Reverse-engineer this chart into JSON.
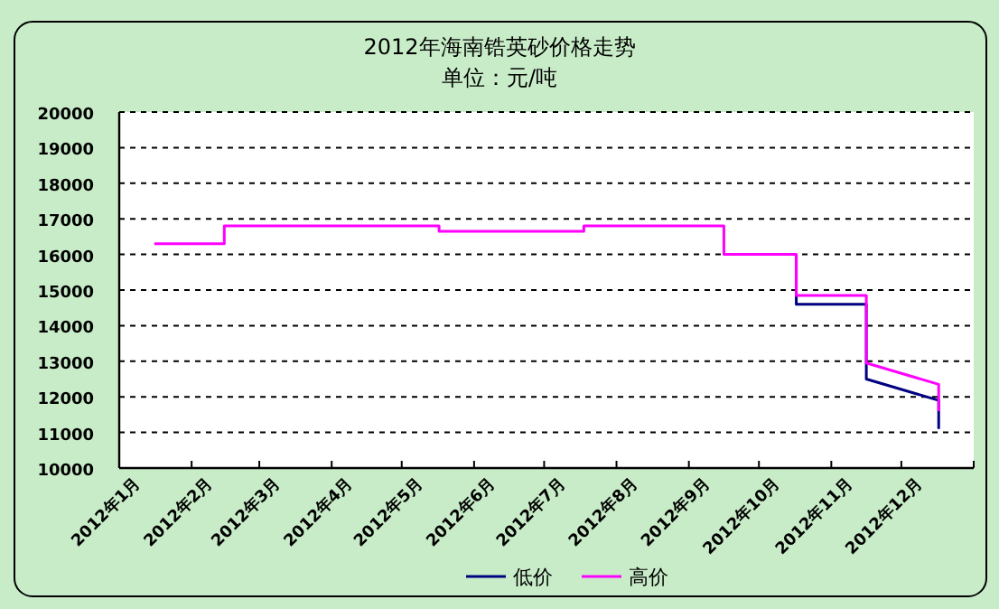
{
  "chart_data": {
    "type": "line",
    "title": "2012年海南锆英砂价格走势",
    "subtitle": "单位：元/吨",
    "xlim": [
      "2012-01-01",
      "2013-01-01"
    ],
    "xticks": [
      {
        "value": "2012-01-01",
        "label": "2012年1月"
      },
      {
        "value": "2012-02-01",
        "label": "2012年2月"
      },
      {
        "value": "2012-03-01",
        "label": "2012年3月"
      },
      {
        "value": "2012-04-01",
        "label": "2012年4月"
      },
      {
        "value": "2012-05-01",
        "label": "2012年5月"
      },
      {
        "value": "2012-06-01",
        "label": "2012年6月"
      },
      {
        "value": "2012-07-01",
        "label": "2012年7月"
      },
      {
        "value": "2012-08-01",
        "label": "2012年8月"
      },
      {
        "value": "2012-09-01",
        "label": "2012年9月"
      },
      {
        "value": "2012-10-01",
        "label": "2012年10月"
      },
      {
        "value": "2012-11-01",
        "label": "2012年11月"
      },
      {
        "value": "2012-12-01",
        "label": "2012年12月"
      },
      {
        "value": "2013-01-01",
        "label": null
      }
    ],
    "ylim": [
      10000,
      20000
    ],
    "yticks": [
      10000,
      11000,
      12000,
      13000,
      14000,
      15000,
      16000,
      17000,
      18000,
      19000,
      20000
    ],
    "grid": "y",
    "legend": "bottom",
    "marker": "none",
    "line_style": "solid",
    "series": [
      {
        "name": "低价",
        "color": "#000080",
        "x": [
          "2012-10-17",
          "2012-10-17",
          "2012-11-16",
          "2012-11-16",
          "2012-12-17",
          "2012-12-17"
        ],
        "values": [
          16000,
          14600,
          14600,
          12500,
          11900,
          11100
        ]
      },
      {
        "name": "高价",
        "color": "#ff00ff",
        "x": [
          "2012-01-16",
          "2012-02-15",
          "2012-02-15",
          "2012-05-17",
          "2012-05-17",
          "2012-07-18",
          "2012-07-18",
          "2012-09-16",
          "2012-09-16",
          "2012-10-17",
          "2012-10-17",
          "2012-11-16",
          "2012-11-16",
          "2012-12-17",
          "2012-12-17"
        ],
        "values": [
          16300,
          16300,
          16800,
          16800,
          16650,
          16650,
          16800,
          16800,
          16000,
          16000,
          14850,
          14850,
          12950,
          12350,
          11600
        ]
      }
    ]
  }
}
